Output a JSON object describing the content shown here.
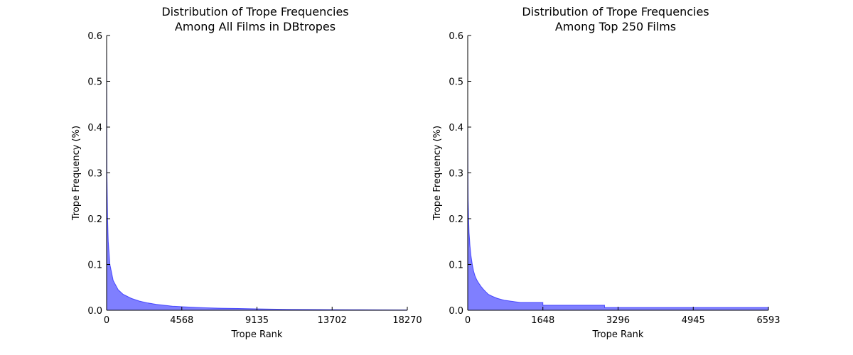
{
  "chart_data": [
    {
      "type": "area",
      "title_line1": "Distribution of Trope Frequencies",
      "title_line2": "Among All Films in DBtropes",
      "xlabel": "Trope Rank",
      "ylabel": "Trope Frequency (%)",
      "xlim": [
        0,
        18270
      ],
      "ylim": [
        0,
        0.6
      ],
      "xticks": [
        0,
        4568,
        9135,
        13702,
        18270
      ],
      "xtick_labels": [
        "0",
        "4568",
        "9135",
        "13702",
        "18270"
      ],
      "yticks": [
        0.0,
        0.1,
        0.2,
        0.3,
        0.4,
        0.5,
        0.6
      ],
      "ytick_labels": [
        "0.0",
        "0.1",
        "0.2",
        "0.3",
        "0.4",
        "0.5",
        "0.6"
      ],
      "grid": false,
      "fill_color": "#0000ff",
      "fill_opacity": 0.5,
      "x": [
        0,
        20,
        60,
        100,
        200,
        400,
        700,
        1000,
        1500,
        2000,
        2500,
        3000,
        4000,
        5000,
        6000,
        7000,
        8000,
        9135,
        10000,
        11000,
        12000,
        13702,
        15000,
        16500,
        18270
      ],
      "y": [
        0.58,
        0.3,
        0.2,
        0.15,
        0.1,
        0.065,
        0.045,
        0.035,
        0.026,
        0.02,
        0.016,
        0.013,
        0.009,
        0.007,
        0.0055,
        0.0045,
        0.0038,
        0.003,
        0.0025,
        0.002,
        0.0017,
        0.0014,
        0.0012,
        0.001,
        0.0008
      ]
    },
    {
      "type": "area",
      "title_line1": "Distribution of Trope Frequencies",
      "title_line2": "Among Top 250 Films",
      "xlabel": "Trope Rank",
      "ylabel": "Trope Frequency (%)",
      "xlim": [
        0,
        6593
      ],
      "ylim": [
        0,
        0.6
      ],
      "xticks": [
        0,
        1648,
        3296,
        4945,
        6593
      ],
      "xtick_labels": [
        "0",
        "1648",
        "3296",
        "4945",
        "6593"
      ],
      "yticks": [
        0.0,
        0.1,
        0.2,
        0.3,
        0.4,
        0.5,
        0.6
      ],
      "ytick_labels": [
        "0.0",
        "0.1",
        "0.2",
        "0.3",
        "0.4",
        "0.5",
        "0.6"
      ],
      "grid": false,
      "fill_color": "#0000ff",
      "fill_opacity": 0.5,
      "x": [
        0,
        5,
        10,
        20,
        30,
        50,
        70,
        100,
        130,
        160,
        200,
        250,
        300,
        350,
        400,
        450,
        550,
        650,
        800,
        1150,
        1648,
        1648,
        3000,
        3000,
        6593
      ],
      "y": [
        0.42,
        0.3,
        0.24,
        0.2,
        0.17,
        0.14,
        0.12,
        0.1,
        0.085,
        0.075,
        0.066,
        0.058,
        0.051,
        0.045,
        0.04,
        0.035,
        0.03,
        0.026,
        0.022,
        0.017,
        0.017,
        0.011,
        0.011,
        0.006,
        0.006
      ]
    }
  ]
}
